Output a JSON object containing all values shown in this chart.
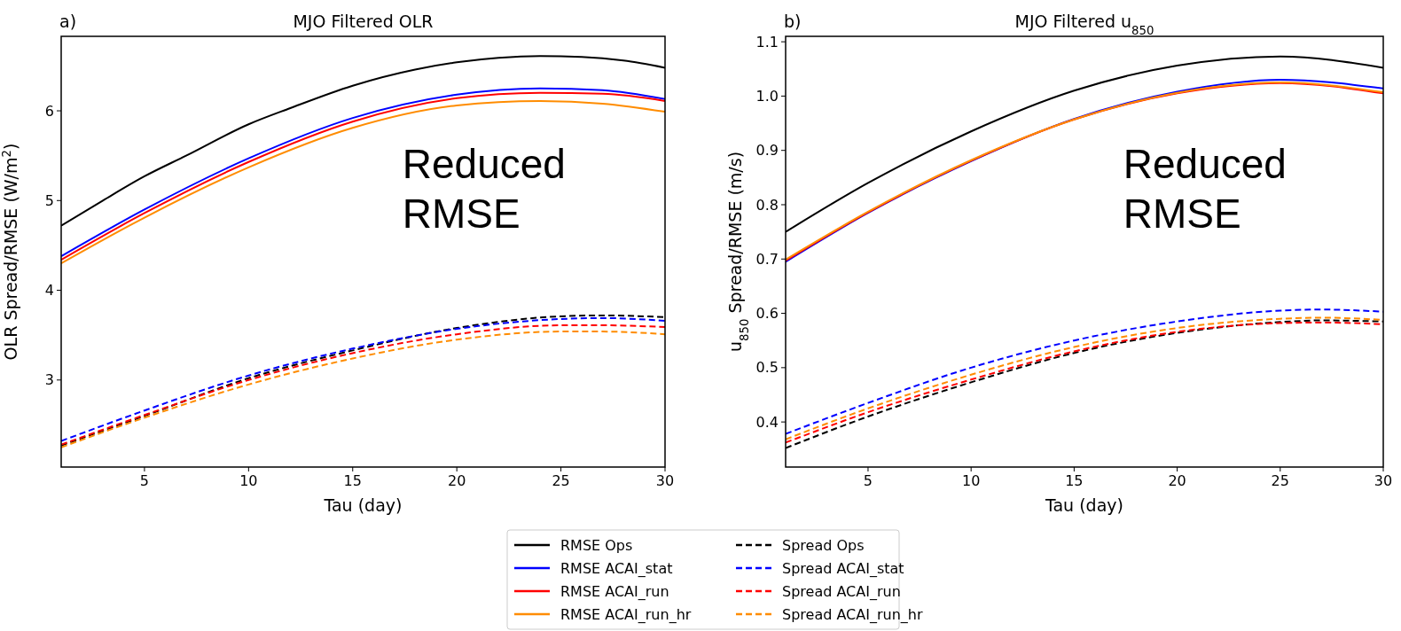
{
  "chart_data": [
    {
      "type": "line",
      "title": "MJO Filtered OLR",
      "xlabel": "Tau (day)",
      "ylabel": "OLR Spread/RMSE (W/m$^{2}$)",
      "annotations": [
        "a)",
        "Reduced\nRMSE"
      ],
      "xlim": [
        1,
        30
      ],
      "xticks": [
        5,
        10,
        15,
        20,
        25,
        30
      ],
      "ylim": [
        2.03,
        6.83
      ],
      "yticks": [
        3,
        4,
        5,
        6
      ],
      "grid": false,
      "legend": "bottom",
      "series": [
        {
          "name": "RMSE Ops",
          "color": "#000000",
          "line_style": "solid",
          "x": [
            1,
            3,
            5,
            7,
            10,
            12,
            15,
            18,
            20,
            22,
            24,
            26,
            28,
            30
          ],
          "values": [
            4.72,
            5.0,
            5.27,
            5.5,
            5.85,
            6.03,
            6.28,
            6.46,
            6.54,
            6.59,
            6.61,
            6.6,
            6.56,
            6.48
          ]
        },
        {
          "name": "RMSE ACAI_stat",
          "color": "#0000ff",
          "line_style": "solid",
          "x": [
            1,
            5,
            10,
            15,
            20,
            24,
            27,
            30
          ],
          "values": [
            4.38,
            4.9,
            5.47,
            5.92,
            6.18,
            6.25,
            6.23,
            6.13
          ]
        },
        {
          "name": "RMSE ACAI_run",
          "color": "#ff0000",
          "line_style": "solid",
          "x": [
            1,
            5,
            10,
            15,
            20,
            24,
            27,
            30
          ],
          "values": [
            4.34,
            4.86,
            5.43,
            5.88,
            6.14,
            6.2,
            6.19,
            6.11
          ]
        },
        {
          "name": "RMSE ACAI_run_hr",
          "color": "#ff8c00",
          "line_style": "solid",
          "x": [
            1,
            5,
            10,
            15,
            20,
            24,
            27,
            30
          ],
          "values": [
            4.3,
            4.81,
            5.37,
            5.81,
            6.06,
            6.11,
            6.08,
            5.99
          ]
        },
        {
          "name": "Spread Ops",
          "color": "#000000",
          "line_style": "dashed",
          "x": [
            1,
            5,
            10,
            15,
            20,
            25,
            27,
            30
          ],
          "values": [
            2.27,
            2.6,
            3.02,
            3.33,
            3.58,
            3.71,
            3.72,
            3.7
          ]
        },
        {
          "name": "Spread ACAI_stat",
          "color": "#0000ff",
          "line_style": "dashed",
          "x": [
            1,
            5,
            10,
            15,
            20,
            25,
            27,
            30
          ],
          "values": [
            2.32,
            2.66,
            3.05,
            3.35,
            3.57,
            3.68,
            3.69,
            3.66
          ]
        },
        {
          "name": "Spread ACAI_run",
          "color": "#ff0000",
          "line_style": "dashed",
          "x": [
            1,
            5,
            10,
            15,
            20,
            25,
            27,
            30
          ],
          "values": [
            2.28,
            2.61,
            3.0,
            3.3,
            3.51,
            3.61,
            3.61,
            3.59
          ]
        },
        {
          "name": "Spread ACAI_run_hr",
          "color": "#ff8c00",
          "line_style": "dashed",
          "x": [
            1,
            5,
            10,
            15,
            20,
            25,
            27,
            30
          ],
          "values": [
            2.25,
            2.58,
            2.95,
            3.24,
            3.45,
            3.54,
            3.54,
            3.51
          ]
        }
      ]
    },
    {
      "type": "line",
      "title": "MJO Filtered u$_{850}$",
      "xlabel": "Tau (day)",
      "ylabel": "u$_{850}$ Spread/RMSE (m/s)",
      "annotations": [
        "b)",
        "Reduced\nRMSE"
      ],
      "xlim": [
        1,
        30
      ],
      "xticks": [
        5,
        10,
        15,
        20,
        25,
        30
      ],
      "ylim": [
        0.317,
        1.11
      ],
      "yticks": [
        {
          "value": 0.4,
          "label": "0.4"
        },
        {
          "value": 0.5,
          "label": "0.5"
        },
        {
          "value": 0.6,
          "label": "0.6"
        },
        {
          "value": 0.7,
          "label": "0.7"
        },
        {
          "value": 0.8,
          "label": "0.8"
        },
        {
          "value": 0.9,
          "label": "0.9"
        },
        {
          "value": 1.0,
          "label": "1.0"
        },
        {
          "value": 1.1,
          "label": "1.1"
        }
      ],
      "grid": false,
      "legend": false,
      "series": [
        {
          "color": "#000000",
          "line_style": "solid",
          "x": [
            1,
            5,
            10,
            15,
            20,
            25,
            30
          ],
          "values": [
            0.75,
            0.84,
            0.935,
            1.01,
            1.056,
            1.073,
            1.052
          ]
        },
        {
          "color": "#0000ff",
          "line_style": "solid",
          "x": [
            1,
            5,
            10,
            15,
            20,
            25,
            30
          ],
          "values": [
            0.695,
            0.785,
            0.88,
            0.958,
            1.008,
            1.03,
            1.014
          ]
        },
        {
          "color": "#ff0000",
          "line_style": "solid",
          "x": [
            1,
            5,
            10,
            15,
            20,
            25,
            30
          ],
          "values": [
            0.697,
            0.786,
            0.881,
            0.957,
            1.005,
            1.024,
            1.005
          ]
        },
        {
          "color": "#ff8c00",
          "line_style": "solid",
          "x": [
            1,
            5,
            10,
            15,
            20,
            25,
            30
          ],
          "values": [
            0.699,
            0.787,
            0.882,
            0.957,
            1.006,
            1.025,
            1.007
          ]
        },
        {
          "color": "#000000",
          "line_style": "dashed",
          "x": [
            1,
            5,
            10,
            15,
            20,
            25,
            27,
            30
          ],
          "values": [
            0.352,
            0.41,
            0.473,
            0.527,
            0.564,
            0.584,
            0.587,
            0.585
          ]
        },
        {
          "color": "#0000ff",
          "line_style": "dashed",
          "x": [
            1,
            5,
            10,
            15,
            20,
            25,
            27,
            30
          ],
          "values": [
            0.378,
            0.435,
            0.5,
            0.55,
            0.585,
            0.605,
            0.607,
            0.603
          ]
        },
        {
          "color": "#ff0000",
          "line_style": "dashed",
          "x": [
            1,
            5,
            10,
            15,
            20,
            25,
            27,
            30
          ],
          "values": [
            0.362,
            0.418,
            0.478,
            0.53,
            0.566,
            0.582,
            0.583,
            0.58
          ]
        },
        {
          "color": "#ff8c00",
          "line_style": "dashed",
          "x": [
            1,
            5,
            10,
            15,
            20,
            25,
            27,
            30
          ],
          "values": [
            0.368,
            0.425,
            0.487,
            0.538,
            0.573,
            0.59,
            0.592,
            0.588
          ]
        }
      ]
    }
  ]
}
